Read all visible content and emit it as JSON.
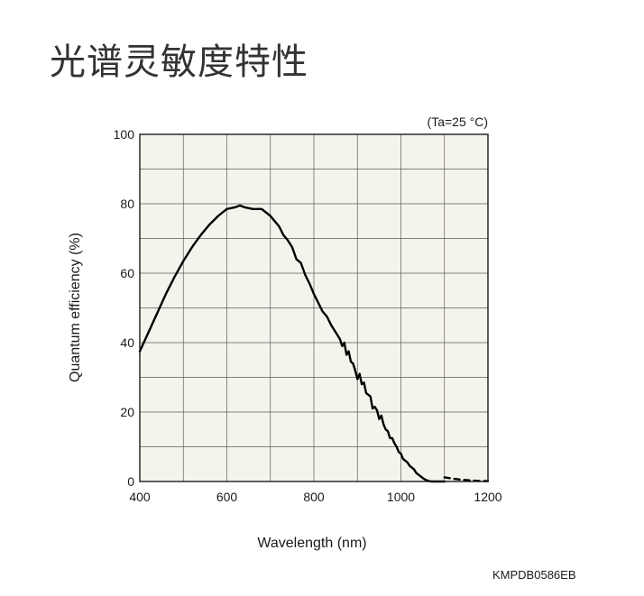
{
  "page": {
    "title": "光谱灵敏度特性",
    "footer_code": "KMPDB0586EB"
  },
  "chart_data": {
    "type": "line",
    "condition_label": "(Ta=25 °C)",
    "xlabel": "Wavelength (nm)",
    "ylabel": "Quantum efficiency (%)",
    "xlim": [
      400,
      1200
    ],
    "ylim": [
      0,
      100
    ],
    "x_ticks": [
      400,
      600,
      800,
      1000,
      1200
    ],
    "y_ticks": [
      0,
      20,
      40,
      60,
      80,
      100
    ],
    "x_gridlines": [
      400,
      500,
      600,
      700,
      800,
      900,
      1000,
      1100,
      1200
    ],
    "y_gridlines": [
      0,
      10,
      20,
      30,
      40,
      50,
      60,
      70,
      80,
      90,
      100
    ],
    "plot_background": "#f5f4ec",
    "grid": true,
    "series": [
      {
        "style": "solid",
        "color": "#000000",
        "x": [
          400,
          420,
          440,
          460,
          480,
          500,
          520,
          540,
          560,
          580,
          600,
          620,
          630,
          640,
          660,
          680,
          700,
          710,
          720,
          730,
          740,
          750,
          760,
          770,
          780,
          790,
          800,
          810,
          820,
          830,
          840,
          850,
          860,
          865,
          870,
          875,
          880,
          885,
          890,
          895,
          900,
          905,
          910,
          915,
          920,
          925,
          930,
          935,
          940,
          945,
          950,
          955,
          960,
          965,
          970,
          975,
          980,
          985,
          990,
          995,
          1000,
          1005,
          1010,
          1015,
          1020,
          1025,
          1030,
          1035,
          1040,
          1045,
          1050,
          1055,
          1060,
          1065,
          1070,
          1075,
          1080,
          1090,
          1100
        ],
        "y": [
          37.5,
          43,
          48.5,
          54,
          59,
          63.5,
          67.5,
          71,
          74,
          76.5,
          78.5,
          79,
          79.5,
          79,
          78.5,
          78.5,
          76.5,
          75,
          73.5,
          71,
          69.5,
          67.5,
          64,
          63,
          59.5,
          57,
          54,
          51.5,
          49,
          47.5,
          45,
          43,
          41,
          39,
          40,
          36.5,
          37.5,
          34.5,
          34,
          32,
          29.5,
          31,
          28,
          28.5,
          25.5,
          25,
          24.5,
          21,
          21.5,
          20.5,
          18,
          19,
          16.5,
          15,
          14.5,
          12.5,
          12.5,
          11,
          10,
          8.5,
          8,
          6.5,
          6,
          5.5,
          4.5,
          4,
          3.5,
          2.5,
          2,
          1.5,
          1,
          0.6,
          0.3,
          0.1,
          0,
          0,
          0,
          0,
          0
        ]
      },
      {
        "style": "dashed",
        "color": "#000000",
        "x": [
          1100,
          1120,
          1140,
          1160,
          1180,
          1200
        ],
        "y": [
          1.2,
          0.8,
          0.5,
          0.3,
          0.15,
          0.1
        ]
      }
    ]
  }
}
